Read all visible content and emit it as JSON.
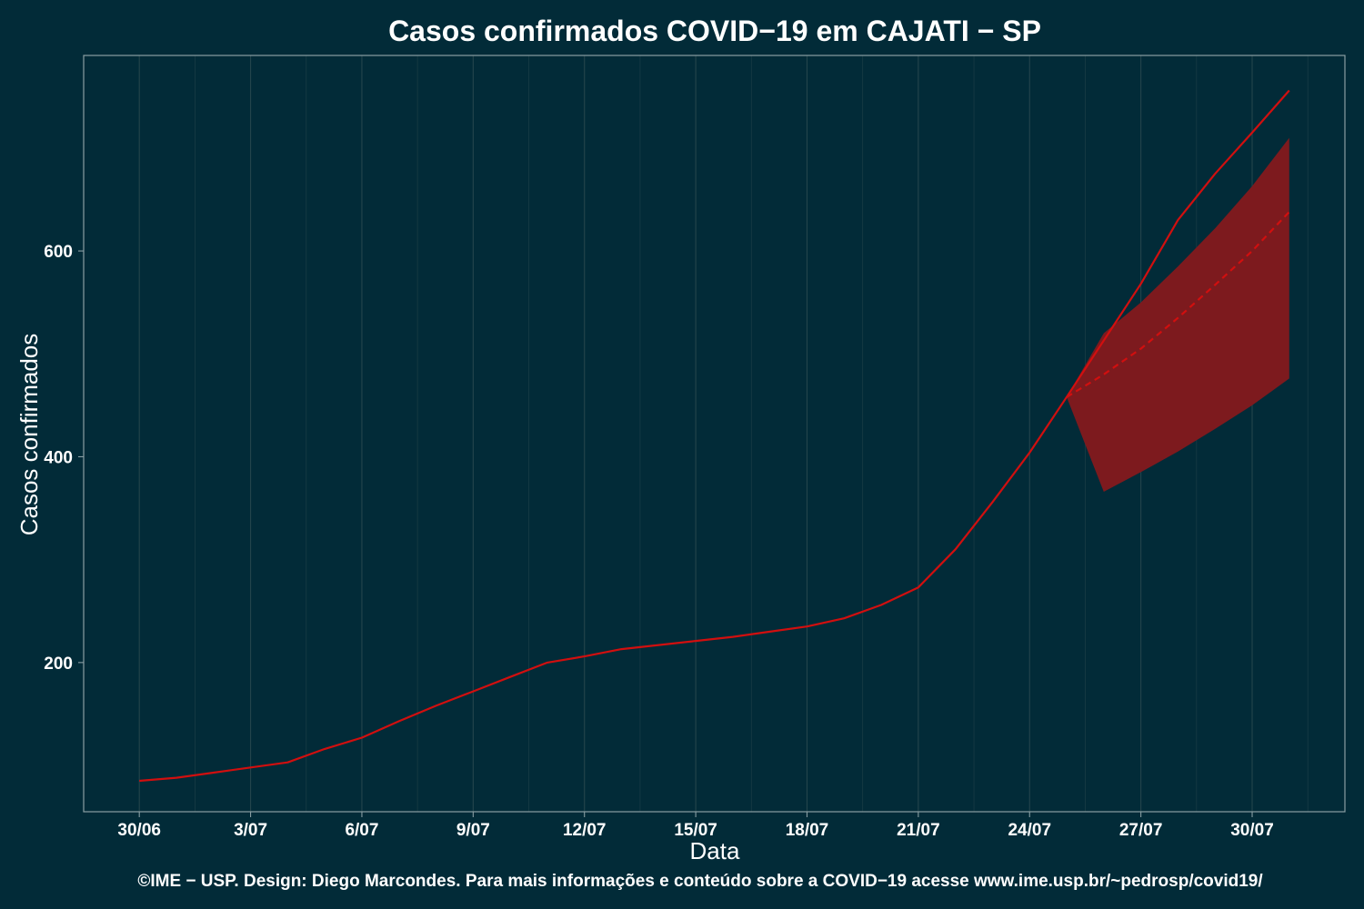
{
  "colors": {
    "background": "#022b38",
    "grid": "#28484f",
    "panel_border": "#8a9ea3",
    "line": "#d10f0f",
    "band": "#7d1a1e",
    "text": "#ffffff"
  },
  "chart_data": {
    "type": "line",
    "title": "Casos confirmados COVID−19 em CAJATI − SP",
    "xlabel": "Data",
    "ylabel": "Casos confirmados",
    "caption": "©IME − USP. Design: Diego Marcondes. Para mais informações e conteúdo sobre a COVID−19 acesse www.ime.usp.br/~pedrosp/covid19/",
    "x_day_range": [
      -1.5,
      32.5
    ],
    "ylim": [
      55,
      790
    ],
    "x_ticks": [
      {
        "day": 0,
        "label": "30/06"
      },
      {
        "day": 3,
        "label": "3/07"
      },
      {
        "day": 6,
        "label": "6/07"
      },
      {
        "day": 9,
        "label": "9/07"
      },
      {
        "day": 12,
        "label": "12/07"
      },
      {
        "day": 15,
        "label": "15/07"
      },
      {
        "day": 18,
        "label": "18/07"
      },
      {
        "day": 21,
        "label": "21/07"
      },
      {
        "day": 24,
        "label": "24/07"
      },
      {
        "day": 27,
        "label": "27/07"
      },
      {
        "day": 30,
        "label": "30/07"
      }
    ],
    "y_ticks": [
      {
        "value": 200,
        "label": "200"
      },
      {
        "value": 400,
        "label": "400"
      },
      {
        "value": 600,
        "label": "600"
      }
    ],
    "grid": true,
    "series": [
      {
        "style": "solid",
        "x": [
          0,
          1,
          2,
          3,
          4,
          5,
          6,
          7,
          8,
          9,
          10,
          11,
          12,
          13,
          14,
          15,
          16,
          17,
          18,
          19,
          20,
          21,
          22,
          23,
          24,
          25,
          26,
          27,
          28,
          29,
          30,
          31
        ],
        "y": [
          85,
          88,
          93,
          98,
          103,
          116,
          127,
          143,
          158,
          172,
          186,
          200,
          206,
          213,
          217,
          221,
          225,
          230,
          235,
          243,
          256,
          273,
          310,
          356,
          404,
          458,
          513,
          568,
          630,
          675,
          715,
          756
        ]
      },
      {
        "style": "dashed",
        "x": [
          25,
          26,
          27,
          28,
          29,
          30,
          31
        ],
        "y": [
          458,
          480,
          505,
          535,
          567,
          600,
          638
        ]
      }
    ],
    "band": {
      "x": [
        25,
        26,
        27,
        28,
        29,
        30,
        31
      ],
      "upper": [
        458,
        520,
        550,
        585,
        622,
        663,
        710
      ],
      "lower": [
        458,
        366,
        385,
        405,
        427,
        450,
        476
      ]
    }
  }
}
